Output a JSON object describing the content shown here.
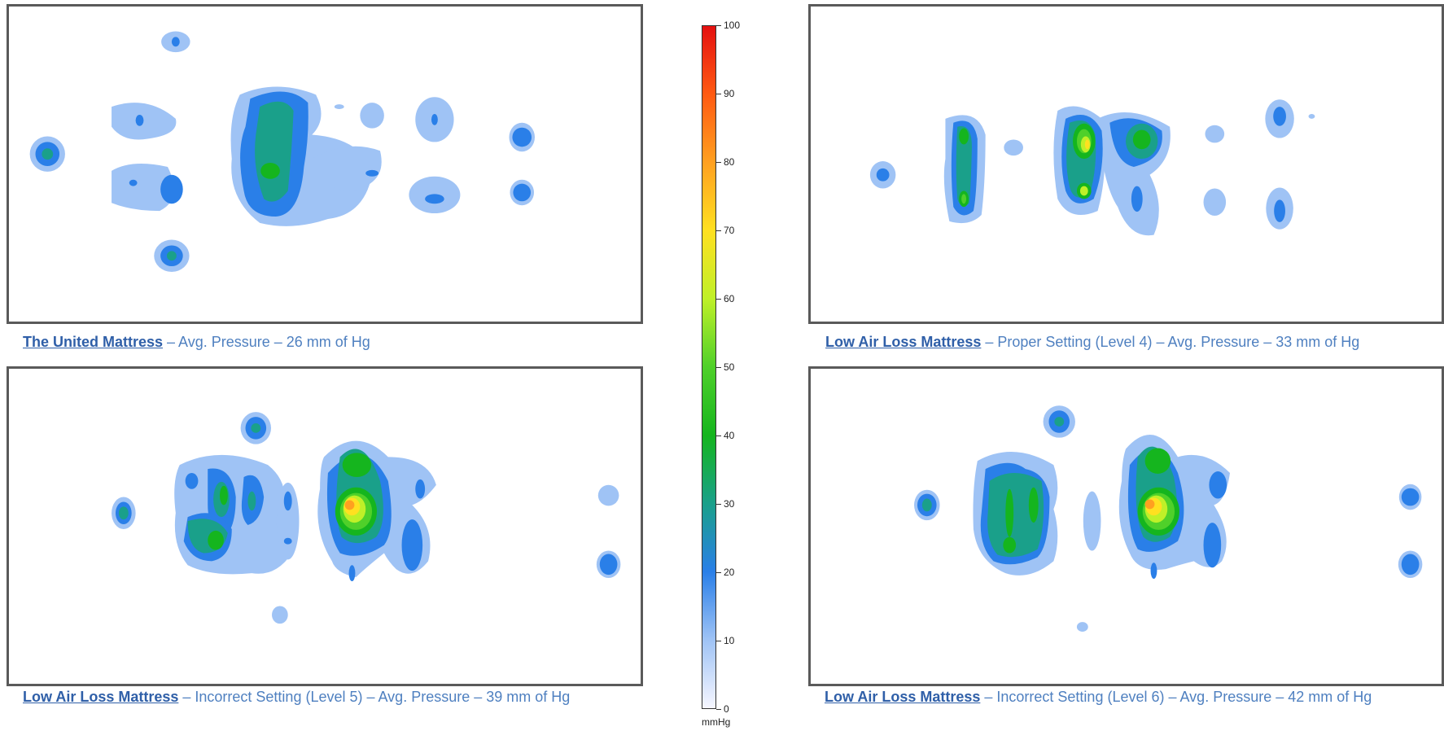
{
  "chart_data": {
    "type": "heatmap",
    "colorbar": {
      "min": 0,
      "max": 100,
      "ticks": [
        "100",
        "90",
        "80",
        "70",
        "60",
        "50",
        "40",
        "30",
        "20",
        "10",
        "0"
      ],
      "unit": "mmHg",
      "colors": [
        "#f6f6ff",
        "#9fc3f5",
        "#2a7fe8",
        "#1aa08a",
        "#15b51e",
        "#4fd02a",
        "#bff028",
        "#ffe020",
        "#ffa020",
        "#ff5a12",
        "#e41010"
      ]
    },
    "panels": [
      {
        "id": "united",
        "caption_link": "The United Mattress",
        "caption_rest": " – Avg. Pressure – 26 mm of Hg",
        "avg_pressure_mmHg": 26
      },
      {
        "id": "lal4",
        "caption_link": "Low Air Loss Mattress",
        "caption_rest": " – Proper Setting (Level 4) – Avg. Pressure – 33 mm of Hg",
        "avg_pressure_mmHg": 33
      },
      {
        "id": "lal5",
        "caption_link": "Low Air Loss Mattress",
        "caption_rest": " – Incorrect Setting (Level 5) – Avg. Pressure – 39 mm of Hg",
        "avg_pressure_mmHg": 39
      },
      {
        "id": "lal6",
        "caption_link": "Low Air Loss Mattress",
        "caption_rest": " – Incorrect Setting (Level 6) – Avg. Pressure – 42 mm of Hg",
        "avg_pressure_mmHg": 42
      }
    ]
  }
}
